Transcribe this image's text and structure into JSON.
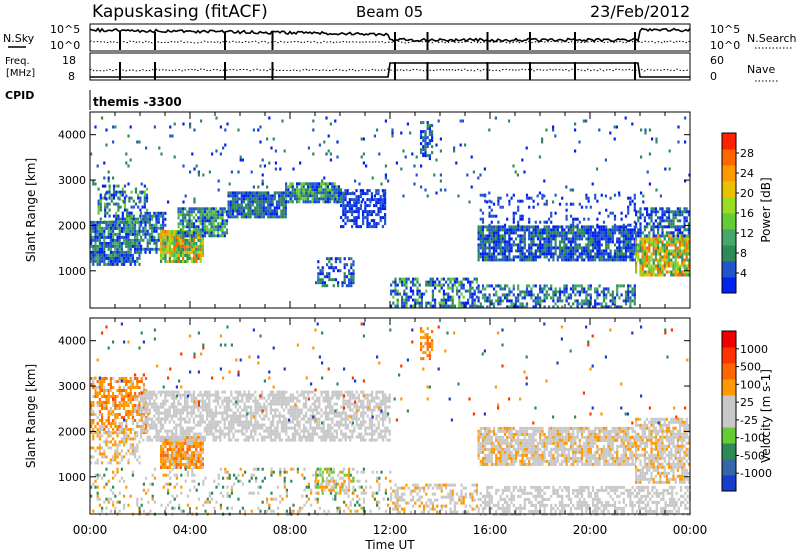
{
  "header": {
    "station": "Kapuskasing (fitACF)",
    "beam": "Beam 05",
    "date": "23/Feb/2012",
    "cpid_label": "CPID",
    "cpid_value": "themis -3300"
  },
  "summary_labels": {
    "nsky": "N.Sky",
    "nsearch": "N.Search",
    "freq_line1": "Freq.",
    "freq_line2": "[MHz]",
    "nave": "Nave",
    "nsky_ticks": [
      "10^5",
      "10^0"
    ],
    "nsearch_ticks": [
      "10^5",
      "10^0"
    ],
    "freq_ticks": [
      "18",
      "8"
    ],
    "nave_ticks": [
      "60",
      "0"
    ]
  },
  "chart_data": [
    {
      "type": "heatmap",
      "panel": "power",
      "ylabel": "Slant Range [km]",
      "xlabel": "",
      "x_ticks": [
        "00:00",
        "04:00",
        "08:00",
        "12:00",
        "16:00",
        "20:00",
        "00:00"
      ],
      "y_ticks": [
        1000,
        2000,
        3000,
        4000
      ],
      "xlim": [
        0,
        24
      ],
      "ylim": [
        180,
        4500
      ],
      "colorbar": {
        "label": "Power [dB]",
        "ticks": [
          "28",
          "24",
          "20",
          "16",
          "12",
          "8",
          "4"
        ],
        "colors": [
          "#0022ee",
          "#2255cc",
          "#2e8b57",
          "#45a86a",
          "#66cc33",
          "#99dd22",
          "#e8c200",
          "#ff9900",
          "#ff6600",
          "#ff2200"
        ]
      },
      "regions": [
        {
          "t0": 0.0,
          "t1": 2.0,
          "r0": 1150,
          "r1": 2100,
          "d": 0.85,
          "c": [
            0,
            1,
            2,
            3
          ]
        },
        {
          "t0": 0.3,
          "t1": 2.3,
          "r0": 2100,
          "r1": 2900,
          "d": 0.45,
          "c": [
            0,
            1,
            2,
            4
          ]
        },
        {
          "t0": 2.0,
          "t1": 3.0,
          "r0": 1400,
          "r1": 2300,
          "d": 0.7,
          "c": [
            0,
            1,
            2,
            3
          ]
        },
        {
          "t0": 2.8,
          "t1": 4.5,
          "r0": 1200,
          "r1": 1900,
          "d": 0.9,
          "c": [
            2,
            3,
            4,
            5,
            6,
            7,
            8
          ]
        },
        {
          "t0": 3.5,
          "t1": 5.5,
          "r0": 1800,
          "r1": 2400,
          "d": 0.85,
          "c": [
            0,
            1,
            2,
            3,
            4
          ]
        },
        {
          "t0": 5.5,
          "t1": 7.8,
          "r0": 2200,
          "r1": 2750,
          "d": 0.9,
          "c": [
            0,
            1,
            2
          ]
        },
        {
          "t0": 7.8,
          "t1": 10.0,
          "r0": 2550,
          "r1": 2950,
          "d": 0.9,
          "c": [
            0,
            1,
            2,
            4
          ]
        },
        {
          "t0": 10.0,
          "t1": 11.8,
          "r0": 2000,
          "r1": 2800,
          "d": 0.6,
          "c": [
            0,
            1
          ]
        },
        {
          "t0": 9.0,
          "t1": 10.5,
          "r0": 700,
          "r1": 1300,
          "d": 0.45,
          "c": [
            0,
            1,
            2
          ]
        },
        {
          "t0": 12.0,
          "t1": 15.5,
          "r0": 200,
          "r1": 850,
          "d": 0.55,
          "c": [
            0,
            1,
            2,
            4
          ]
        },
        {
          "t0": 13.2,
          "t1": 13.7,
          "r0": 3500,
          "r1": 4300,
          "d": 0.5,
          "c": [
            0,
            1,
            2
          ]
        },
        {
          "t0": 15.5,
          "t1": 21.8,
          "r0": 200,
          "r1": 700,
          "d": 0.55,
          "c": [
            0,
            1,
            2,
            3
          ]
        },
        {
          "t0": 15.5,
          "t1": 21.8,
          "r0": 1250,
          "r1": 2000,
          "d": 0.8,
          "c": [
            0,
            1,
            2
          ]
        },
        {
          "t0": 15.5,
          "t1": 21.8,
          "r0": 2000,
          "r1": 2700,
          "d": 0.2,
          "c": [
            0,
            1
          ]
        },
        {
          "t0": 21.8,
          "t1": 24.0,
          "r0": 900,
          "r1": 1800,
          "d": 0.85,
          "c": [
            2,
            3,
            4,
            5,
            6,
            7,
            8
          ]
        },
        {
          "t0": 21.8,
          "t1": 24.0,
          "r0": 1800,
          "r1": 2400,
          "d": 0.6,
          "c": [
            0,
            1,
            2
          ]
        },
        {
          "t0": 0.0,
          "t1": 24.0,
          "r0": 2500,
          "r1": 4400,
          "d": 0.03,
          "c": [
            0,
            1,
            2
          ]
        }
      ]
    },
    {
      "type": "heatmap",
      "panel": "velocity",
      "ylabel": "Slant Range [km]",
      "xlabel": "Time UT",
      "x_ticks": [
        "00:00",
        "04:00",
        "08:00",
        "12:00",
        "16:00",
        "20:00",
        "00:00"
      ],
      "y_ticks": [
        1000,
        2000,
        3000,
        4000
      ],
      "xlim": [
        0,
        24
      ],
      "ylim": [
        180,
        4500
      ],
      "colorbar": {
        "label": "Velocity [m s-1]",
        "ticks": [
          "1000",
          "500",
          "100",
          "25",
          "-25",
          "-100",
          "-500",
          "-1000"
        ],
        "colors": [
          "#1a3ccc",
          "#3366aa",
          "#2e8b57",
          "#66cc33",
          "#c8c8c8",
          "#c8c8c8",
          "#ff9900",
          "#ff6600",
          "#ff3300",
          "#ee0000"
        ]
      },
      "regions": [
        {
          "t0": 0.0,
          "t1": 2.2,
          "r0": 2000,
          "r1": 3200,
          "d": 0.6,
          "c": [
            6,
            7,
            6,
            4
          ]
        },
        {
          "t0": 0.0,
          "t1": 2.0,
          "r0": 1300,
          "r1": 2000,
          "d": 0.5,
          "c": [
            4,
            4,
            6
          ]
        },
        {
          "t0": 2.8,
          "t1": 4.5,
          "r0": 1200,
          "r1": 1900,
          "d": 0.9,
          "c": [
            6,
            7,
            6,
            4
          ]
        },
        {
          "t0": 2.0,
          "t1": 12.0,
          "r0": 1800,
          "r1": 2900,
          "d": 0.65,
          "c": [
            4,
            4,
            4,
            5
          ]
        },
        {
          "t0": 0.0,
          "t1": 12.0,
          "r0": 200,
          "r1": 1200,
          "d": 0.18,
          "c": [
            4,
            5,
            6,
            2
          ]
        },
        {
          "t0": 9.0,
          "t1": 10.5,
          "r0": 650,
          "r1": 1200,
          "d": 0.45,
          "c": [
            4,
            6,
            3
          ]
        },
        {
          "t0": 12.0,
          "t1": 15.5,
          "r0": 200,
          "r1": 850,
          "d": 0.45,
          "c": [
            4,
            4,
            6
          ]
        },
        {
          "t0": 13.2,
          "t1": 13.7,
          "r0": 3600,
          "r1": 4300,
          "d": 0.5,
          "c": [
            6,
            7
          ]
        },
        {
          "t0": 15.5,
          "t1": 24.0,
          "r0": 200,
          "r1": 800,
          "d": 0.5,
          "c": [
            4,
            4,
            5
          ]
        },
        {
          "t0": 15.5,
          "t1": 21.8,
          "r0": 1250,
          "r1": 2100,
          "d": 0.8,
          "c": [
            4,
            4,
            4,
            6
          ]
        },
        {
          "t0": 21.8,
          "t1": 24.0,
          "r0": 900,
          "r1": 2300,
          "d": 0.75,
          "c": [
            4,
            4,
            5,
            6
          ]
        },
        {
          "t0": 0.0,
          "t1": 24.0,
          "r0": 2200,
          "r1": 4400,
          "d": 0.02,
          "c": [
            0,
            2,
            6,
            8
          ]
        }
      ]
    }
  ]
}
